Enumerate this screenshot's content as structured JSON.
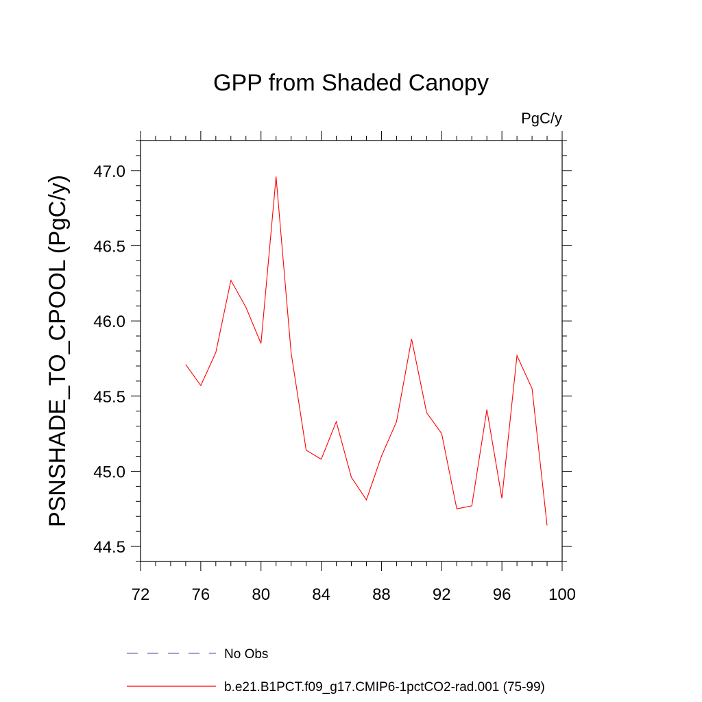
{
  "chart_data": {
    "type": "line",
    "title": "GPP from Shaded Canopy",
    "units": "PgC/y",
    "xlabel": "",
    "ylabel": "PSNSHADE_TO_CPOOL  (PgC/y)",
    "xlim": [
      72,
      100
    ],
    "ylim": [
      44.4,
      47.2
    ],
    "x_ticks": [
      "72",
      "76",
      "80",
      "84",
      "88",
      "92",
      "96",
      "100"
    ],
    "y_ticks": [
      "44.5",
      "45.0",
      "45.5",
      "46.0",
      "46.5",
      "47.0"
    ],
    "series": [
      {
        "name": "b.e21.B1PCT.f09_g17.CMIP6-1pctCO2-rad.001 (75-99)",
        "color": "#ff0000",
        "x": [
          75,
          76,
          77,
          78,
          79,
          80,
          81,
          82,
          83,
          84,
          85,
          86,
          87,
          88,
          89,
          90,
          91,
          92,
          93,
          94,
          95,
          96,
          97,
          98,
          99
        ],
        "y": [
          45.71,
          45.57,
          45.79,
          46.27,
          46.09,
          45.85,
          46.96,
          45.79,
          45.14,
          45.08,
          45.33,
          44.96,
          44.81,
          45.1,
          45.33,
          45.88,
          45.39,
          45.25,
          44.75,
          44.77,
          45.41,
          44.82,
          45.77,
          45.55,
          44.64
        ]
      }
    ],
    "legend": [
      {
        "label": "No Obs",
        "color": "#6a6ab8",
        "style": "dashed"
      },
      {
        "label": "b.e21.B1PCT.f09_g17.CMIP6-1pctCO2-rad.001 (75-99)",
        "color": "#ff0000",
        "style": "solid"
      }
    ],
    "grid": false,
    "legend_position": "bottom"
  }
}
